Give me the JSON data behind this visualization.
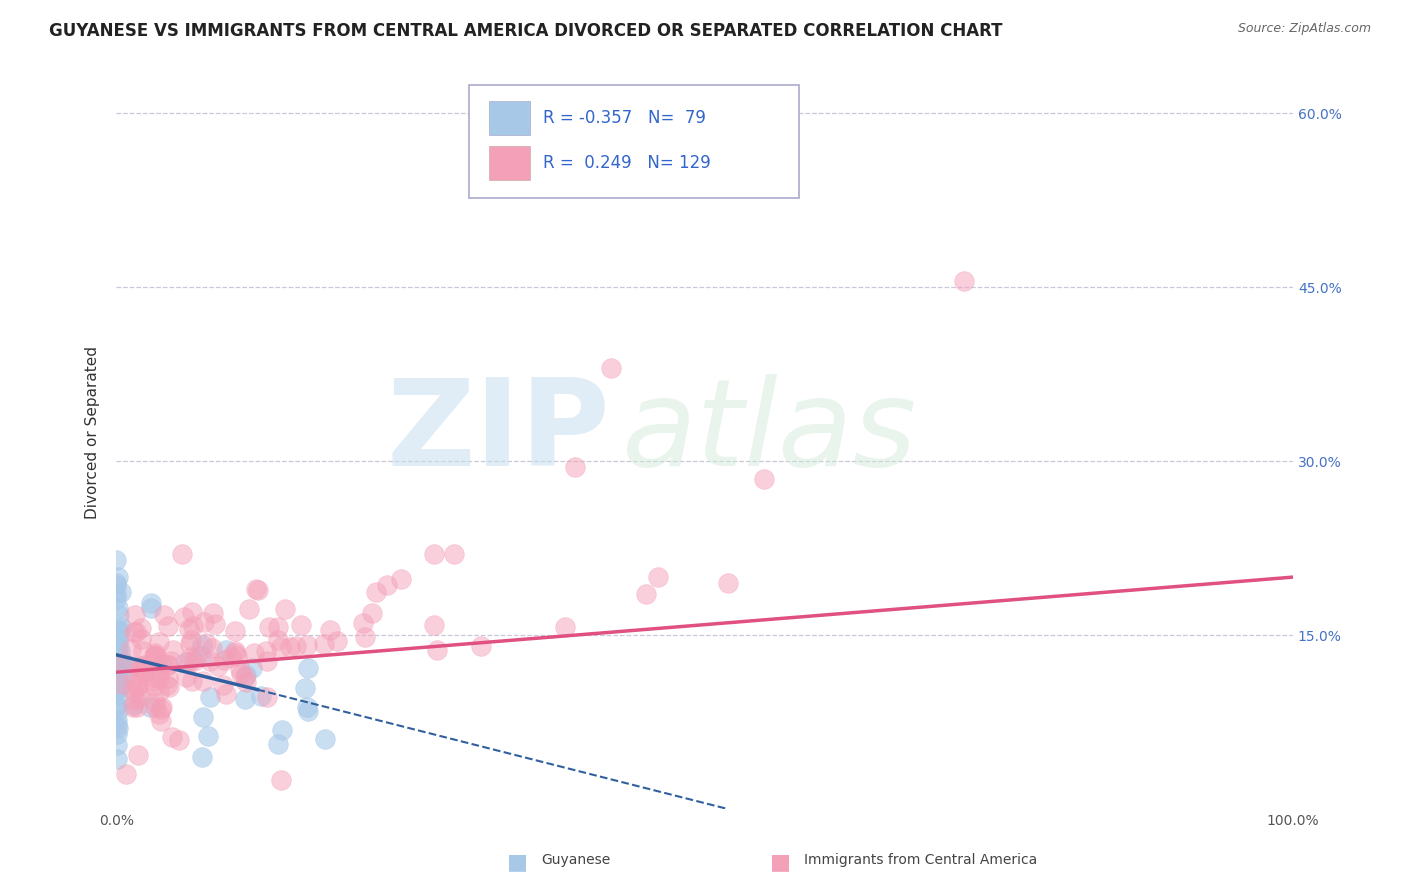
{
  "title": "GUYANESE VS IMMIGRANTS FROM CENTRAL AMERICA DIVORCED OR SEPARATED CORRELATION CHART",
  "source": "Source: ZipAtlas.com",
  "ylabel": "Divorced or Separated",
  "xlabel": "",
  "xlim": [
    0.0,
    1.0
  ],
  "ylim": [
    0.0,
    0.65
  ],
  "yticks": [
    0.15,
    0.3,
    0.45,
    0.6
  ],
  "ytick_labels": [
    "15.0%",
    "30.0%",
    "45.0%",
    "60.0%"
  ],
  "xticks": [
    0.0,
    1.0
  ],
  "xtick_labels": [
    "0.0%",
    "100.0%"
  ],
  "blue_R": -0.357,
  "blue_N": 79,
  "pink_R": 0.249,
  "pink_N": 129,
  "blue_color": "#a8c8e8",
  "pink_color": "#f4a0b8",
  "blue_line_color": "#3060a0",
  "pink_line_color": "#e05080",
  "legend_label_blue": "Guyanese",
  "legend_label_pink": "Immigrants from Central America",
  "watermark_zip": "ZIP",
  "watermark_atlas": "atlas",
  "background_color": "#ffffff",
  "grid_color": "#c8c8d8",
  "title_fontsize": 12,
  "axis_label_fontsize": 11,
  "tick_fontsize": 10,
  "legend_fontsize": 12
}
